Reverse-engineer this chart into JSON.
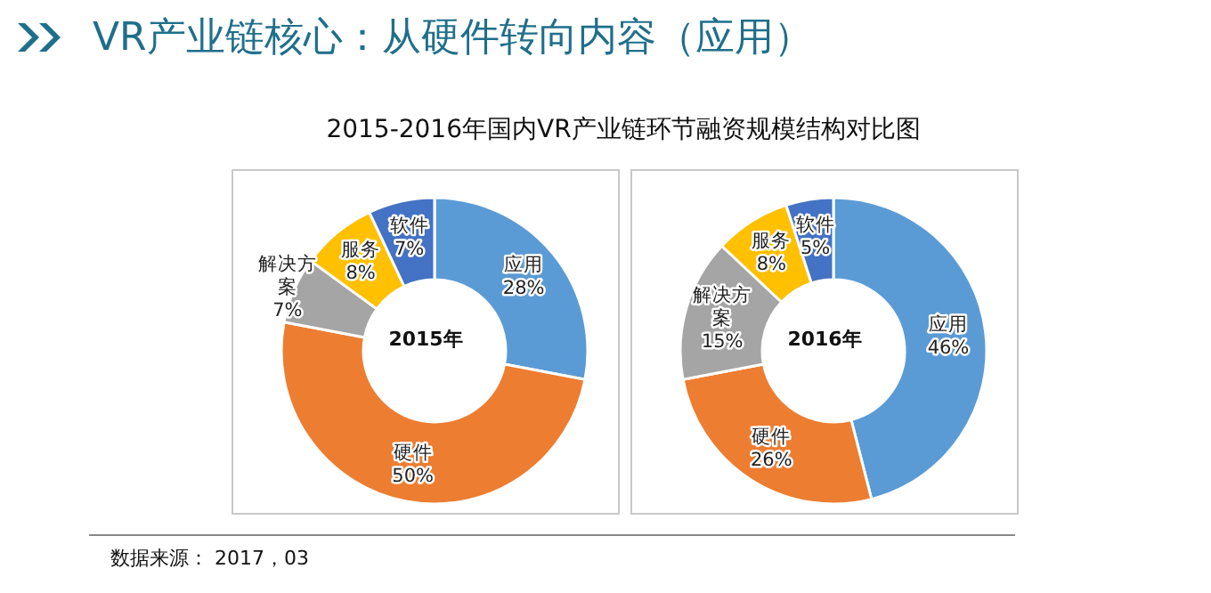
{
  "chart_data": [
    {
      "type": "donut",
      "title": "VR产业链核心：从硬件转向内容（应用）",
      "subtitle": "2015-2016年国内VR产业链环节融资规模结构对比图",
      "categories": [
        "应用",
        "硬件",
        "解决方案",
        "服务",
        "软件"
      ],
      "values": [
        28,
        50,
        7,
        8,
        7
      ],
      "value_labels": [
        "28%",
        "50%",
        "7%",
        "8%",
        "7%"
      ],
      "colors": [
        "#5b9bd5",
        "#ed7d31",
        "#a5a5a5",
        "#ffc000",
        "#4472c4"
      ],
      "annotations": [
        "2015年",
        "数据来源： 2017，03"
      ],
      "legend": false
    },
    {
      "type": "donut",
      "categories": [
        "应用",
        "硬件",
        "解决方案",
        "服务",
        "软件"
      ],
      "values": [
        46,
        26,
        15,
        8,
        5
      ],
      "value_labels": [
        "46%",
        "26%",
        "15%",
        "8%",
        "5%"
      ],
      "colors": [
        "#5b9bd5",
        "#ed7d31",
        "#a5a5a5",
        "#ffc000",
        "#4472c4"
      ],
      "annotations": [
        "2016年"
      ],
      "legend": false
    }
  ]
}
